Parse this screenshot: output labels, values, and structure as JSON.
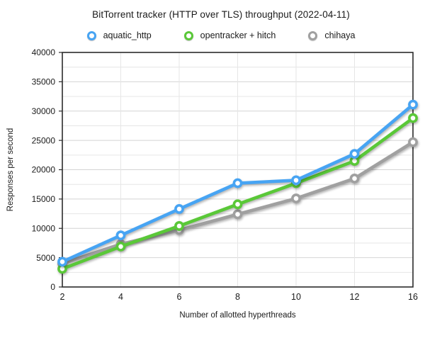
{
  "title": "BitTorrent tracker (HTTP over TLS) throughput (2022-04-11)",
  "chart_data": {
    "type": "line",
    "title": "BitTorrent tracker (HTTP over TLS) throughput (2022-04-11)",
    "xlabel": "Number of allotted hyperthreads",
    "ylabel": "Responses per second",
    "x": [
      2,
      4,
      6,
      8,
      10,
      12,
      16
    ],
    "x_tick_labels": [
      "2",
      "4",
      "6",
      "8",
      "10",
      "12",
      "16"
    ],
    "ylim": [
      0,
      40000
    ],
    "y_major_step": 5000,
    "y_minor_step": 2500,
    "y_tick_labels": [
      "0",
      "5000",
      "10000",
      "15000",
      "20000",
      "25000",
      "30000",
      "35000",
      "40000"
    ],
    "grid": true,
    "legend_position": "top",
    "series": [
      {
        "name": "aquatic_http",
        "color": "#47A4F3",
        "values": [
          4300,
          8800,
          13300,
          17700,
          18200,
          22700,
          31100
        ]
      },
      {
        "name": "opentracker + hitch",
        "color": "#5AC838",
        "values": [
          3100,
          6900,
          10400,
          14100,
          17700,
          21500,
          28800
        ]
      },
      {
        "name": "chihaya",
        "color": "#A0A0A0",
        "values": [
          4000,
          7300,
          9700,
          12400,
          15100,
          18500,
          24700
        ]
      }
    ],
    "colors": {
      "frame": "#2b2b2b",
      "grid_major": "#d4d4d4",
      "grid_minor": "#e6e6e6",
      "tick_text": "#1a1a1a"
    }
  }
}
